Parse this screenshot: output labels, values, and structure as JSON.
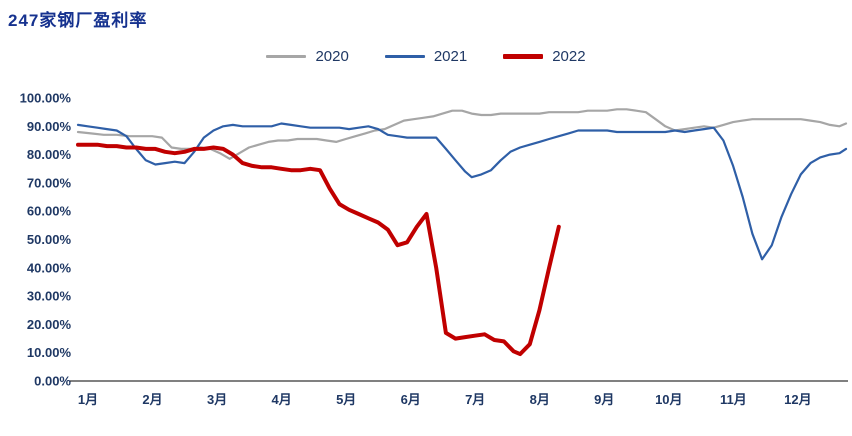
{
  "title": "247家钢厂盈利率",
  "colors": {
    "title": "#16328F",
    "axis_text": "#1F3864",
    "axis_line": "#000000",
    "background": "#FFFFFF"
  },
  "chart_data": {
    "type": "line",
    "title": "247家钢厂盈利率",
    "xlabel": "",
    "ylabel": "",
    "grid": false,
    "legend_position": "top-center",
    "x_axis": {
      "unit": "month",
      "range": [
        1,
        12.9
      ],
      "tick_values": [
        1,
        2,
        3,
        4,
        5,
        6,
        7,
        8,
        9,
        10,
        11,
        12
      ],
      "tick_labels": [
        "1月",
        "2月",
        "3月",
        "4月",
        "5月",
        "6月",
        "7月",
        "8月",
        "9月",
        "10月",
        "11月",
        "12月"
      ]
    },
    "y_axis": {
      "unit": "percent",
      "range": [
        0,
        100
      ],
      "tick_values": [
        0,
        10,
        20,
        30,
        40,
        50,
        60,
        70,
        80,
        90,
        100
      ],
      "tick_labels": [
        "0.00%",
        "10.00%",
        "20.00%",
        "30.00%",
        "40.00%",
        "50.00%",
        "60.00%",
        "70.00%",
        "80.00%",
        "90.00%",
        "100.00%"
      ]
    },
    "series": [
      {
        "name": "2020",
        "color": "#A6A6A6",
        "width": 2.2,
        "points": [
          [
            1.0,
            88
          ],
          [
            1.2,
            87.5
          ],
          [
            1.4,
            87
          ],
          [
            1.6,
            87
          ],
          [
            1.8,
            86.5
          ],
          [
            2.0,
            86.5
          ],
          [
            2.15,
            86.5
          ],
          [
            2.3,
            86
          ],
          [
            2.45,
            82.5
          ],
          [
            2.6,
            82
          ],
          [
            2.75,
            82
          ],
          [
            2.9,
            82.5
          ],
          [
            3.05,
            82
          ],
          [
            3.2,
            80.5
          ],
          [
            3.35,
            78.5
          ],
          [
            3.5,
            80.5
          ],
          [
            3.65,
            82.5
          ],
          [
            3.8,
            83.5
          ],
          [
            3.95,
            84.5
          ],
          [
            4.1,
            85
          ],
          [
            4.25,
            85
          ],
          [
            4.4,
            85.5
          ],
          [
            4.55,
            85.5
          ],
          [
            4.7,
            85.5
          ],
          [
            4.85,
            85
          ],
          [
            5.0,
            84.5
          ],
          [
            5.15,
            85.5
          ],
          [
            5.3,
            86.5
          ],
          [
            5.45,
            87.5
          ],
          [
            5.6,
            88.5
          ],
          [
            5.75,
            89
          ],
          [
            5.9,
            90.5
          ],
          [
            6.05,
            92
          ],
          [
            6.2,
            92.5
          ],
          [
            6.35,
            93
          ],
          [
            6.5,
            93.5
          ],
          [
            6.65,
            94.5
          ],
          [
            6.8,
            95.5
          ],
          [
            6.95,
            95.5
          ],
          [
            7.1,
            94.5
          ],
          [
            7.25,
            94
          ],
          [
            7.4,
            94
          ],
          [
            7.55,
            94.5
          ],
          [
            7.7,
            94.5
          ],
          [
            7.85,
            94.5
          ],
          [
            8.0,
            94.5
          ],
          [
            8.15,
            94.5
          ],
          [
            8.3,
            95
          ],
          [
            8.45,
            95
          ],
          [
            8.6,
            95
          ],
          [
            8.75,
            95
          ],
          [
            8.9,
            95.5
          ],
          [
            9.05,
            95.5
          ],
          [
            9.2,
            95.5
          ],
          [
            9.35,
            96
          ],
          [
            9.5,
            96
          ],
          [
            9.65,
            95.5
          ],
          [
            9.8,
            95
          ],
          [
            9.95,
            92.5
          ],
          [
            10.1,
            90
          ],
          [
            10.25,
            88.5
          ],
          [
            10.4,
            89
          ],
          [
            10.55,
            89.5
          ],
          [
            10.7,
            90
          ],
          [
            10.85,
            89.5
          ],
          [
            11.0,
            90.5
          ],
          [
            11.15,
            91.5
          ],
          [
            11.3,
            92
          ],
          [
            11.45,
            92.5
          ],
          [
            11.6,
            92.5
          ],
          [
            11.75,
            92.5
          ],
          [
            11.9,
            92.5
          ],
          [
            12.05,
            92.5
          ],
          [
            12.2,
            92.5
          ],
          [
            12.35,
            92
          ],
          [
            12.5,
            91.5
          ],
          [
            12.65,
            90.5
          ],
          [
            12.8,
            90
          ],
          [
            12.9,
            91
          ]
        ]
      },
      {
        "name": "2021",
        "color": "#2F5FA7",
        "width": 2.2,
        "points": [
          [
            1.0,
            90.5
          ],
          [
            1.15,
            90
          ],
          [
            1.3,
            89.5
          ],
          [
            1.45,
            89
          ],
          [
            1.6,
            88.5
          ],
          [
            1.75,
            86.5
          ],
          [
            1.9,
            82
          ],
          [
            2.05,
            78
          ],
          [
            2.2,
            76.5
          ],
          [
            2.35,
            77
          ],
          [
            2.5,
            77.5
          ],
          [
            2.65,
            77
          ],
          [
            2.8,
            81
          ],
          [
            2.95,
            86
          ],
          [
            3.1,
            88.5
          ],
          [
            3.25,
            90
          ],
          [
            3.4,
            90.5
          ],
          [
            3.55,
            90
          ],
          [
            3.7,
            90
          ],
          [
            3.85,
            90
          ],
          [
            4.0,
            90
          ],
          [
            4.15,
            91
          ],
          [
            4.3,
            90.5
          ],
          [
            4.45,
            90
          ],
          [
            4.6,
            89.5
          ],
          [
            4.75,
            89.5
          ],
          [
            4.9,
            89.5
          ],
          [
            5.05,
            89.5
          ],
          [
            5.2,
            89
          ],
          [
            5.35,
            89.5
          ],
          [
            5.5,
            90
          ],
          [
            5.65,
            89
          ],
          [
            5.8,
            87
          ],
          [
            5.95,
            86.5
          ],
          [
            6.1,
            86
          ],
          [
            6.25,
            86
          ],
          [
            6.4,
            86
          ],
          [
            6.55,
            86
          ],
          [
            6.7,
            82
          ],
          [
            6.85,
            78
          ],
          [
            7.0,
            74
          ],
          [
            7.1,
            72
          ],
          [
            7.25,
            73
          ],
          [
            7.4,
            74.5
          ],
          [
            7.55,
            78
          ],
          [
            7.7,
            81
          ],
          [
            7.85,
            82.5
          ],
          [
            8.0,
            83.5
          ],
          [
            8.15,
            84.5
          ],
          [
            8.3,
            85.5
          ],
          [
            8.45,
            86.5
          ],
          [
            8.6,
            87.5
          ],
          [
            8.75,
            88.5
          ],
          [
            8.9,
            88.5
          ],
          [
            9.05,
            88.5
          ],
          [
            9.2,
            88.5
          ],
          [
            9.35,
            88
          ],
          [
            9.5,
            88
          ],
          [
            9.65,
            88
          ],
          [
            9.8,
            88
          ],
          [
            9.95,
            88
          ],
          [
            10.1,
            88
          ],
          [
            10.25,
            88.5
          ],
          [
            10.4,
            88
          ],
          [
            10.55,
            88.5
          ],
          [
            10.7,
            89
          ],
          [
            10.85,
            89.5
          ],
          [
            11.0,
            85
          ],
          [
            11.15,
            76
          ],
          [
            11.3,
            65
          ],
          [
            11.45,
            52
          ],
          [
            11.6,
            43
          ],
          [
            11.75,
            48
          ],
          [
            11.9,
            58
          ],
          [
            12.05,
            66
          ],
          [
            12.2,
            73
          ],
          [
            12.35,
            77
          ],
          [
            12.5,
            79
          ],
          [
            12.65,
            80
          ],
          [
            12.8,
            80.5
          ],
          [
            12.9,
            82
          ]
        ]
      },
      {
        "name": "2022",
        "color": "#C00000",
        "width": 4,
        "points": [
          [
            1.0,
            83.5
          ],
          [
            1.15,
            83.5
          ],
          [
            1.3,
            83.5
          ],
          [
            1.45,
            83
          ],
          [
            1.6,
            83
          ],
          [
            1.75,
            82.5
          ],
          [
            1.9,
            82.5
          ],
          [
            2.05,
            82
          ],
          [
            2.2,
            82
          ],
          [
            2.35,
            81
          ],
          [
            2.5,
            80.5
          ],
          [
            2.65,
            81
          ],
          [
            2.8,
            82
          ],
          [
            2.95,
            82
          ],
          [
            3.1,
            82.5
          ],
          [
            3.25,
            82
          ],
          [
            3.4,
            80
          ],
          [
            3.55,
            77
          ],
          [
            3.7,
            76
          ],
          [
            3.85,
            75.5
          ],
          [
            4.0,
            75.5
          ],
          [
            4.15,
            75
          ],
          [
            4.3,
            74.5
          ],
          [
            4.45,
            74.5
          ],
          [
            4.6,
            75
          ],
          [
            4.75,
            74.5
          ],
          [
            4.9,
            68
          ],
          [
            5.05,
            62.5
          ],
          [
            5.2,
            60.5
          ],
          [
            5.35,
            59
          ],
          [
            5.5,
            57.5
          ],
          [
            5.65,
            56
          ],
          [
            5.8,
            53.5
          ],
          [
            5.95,
            48
          ],
          [
            6.1,
            49
          ],
          [
            6.25,
            54.5
          ],
          [
            6.4,
            59
          ],
          [
            6.55,
            40
          ],
          [
            6.7,
            17
          ],
          [
            6.85,
            15
          ],
          [
            7.0,
            15.5
          ],
          [
            7.15,
            16
          ],
          [
            7.3,
            16.5
          ],
          [
            7.45,
            14.5
          ],
          [
            7.6,
            14
          ],
          [
            7.75,
            10.5
          ],
          [
            7.85,
            9.5
          ],
          [
            8.0,
            13
          ],
          [
            8.15,
            25
          ],
          [
            8.3,
            40
          ],
          [
            8.45,
            54.5
          ]
        ]
      }
    ]
  }
}
